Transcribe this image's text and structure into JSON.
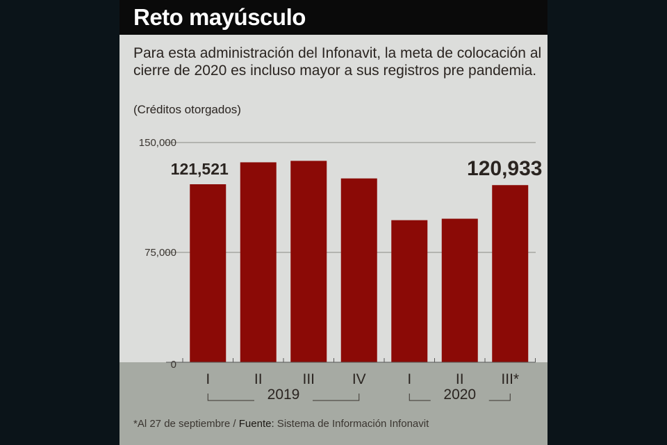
{
  "header": {
    "title": "Reto mayúsculo",
    "subtitle": "Para esta administración del Infonavit, la meta de colocación al cierre de 2020 es incluso mayor a sus registros pre pandemia.",
    "unit": "(Créditos otorgados)"
  },
  "footer": {
    "note": "*Al 27 de septiembre / ",
    "source_label": "Fuente:",
    "source": " Sistema de Información Infonavit"
  },
  "chart_data": {
    "type": "bar",
    "title": "Reto mayúsculo",
    "ylabel": "Créditos otorgados",
    "categories": [
      "I",
      "II",
      "III",
      "IV",
      "I",
      "II",
      "III*"
    ],
    "groups": [
      {
        "label": "2019",
        "from": 0,
        "to": 3
      },
      {
        "label": "2020",
        "from": 4,
        "to": 6
      }
    ],
    "values": [
      121521,
      136500,
      137500,
      125500,
      97000,
      98000,
      120933
    ],
    "data_labels": [
      {
        "index": 0,
        "text": "121,521"
      },
      {
        "index": 6,
        "text": "120,933"
      }
    ],
    "yticks": [
      {
        "value": 0,
        "label": "0"
      },
      {
        "value": 75000,
        "label": "75,000"
      },
      {
        "value": 150000,
        "label": "150,000"
      }
    ],
    "ylim": [
      0,
      150000
    ],
    "bar_color": "#8b0a06",
    "grid": true
  }
}
